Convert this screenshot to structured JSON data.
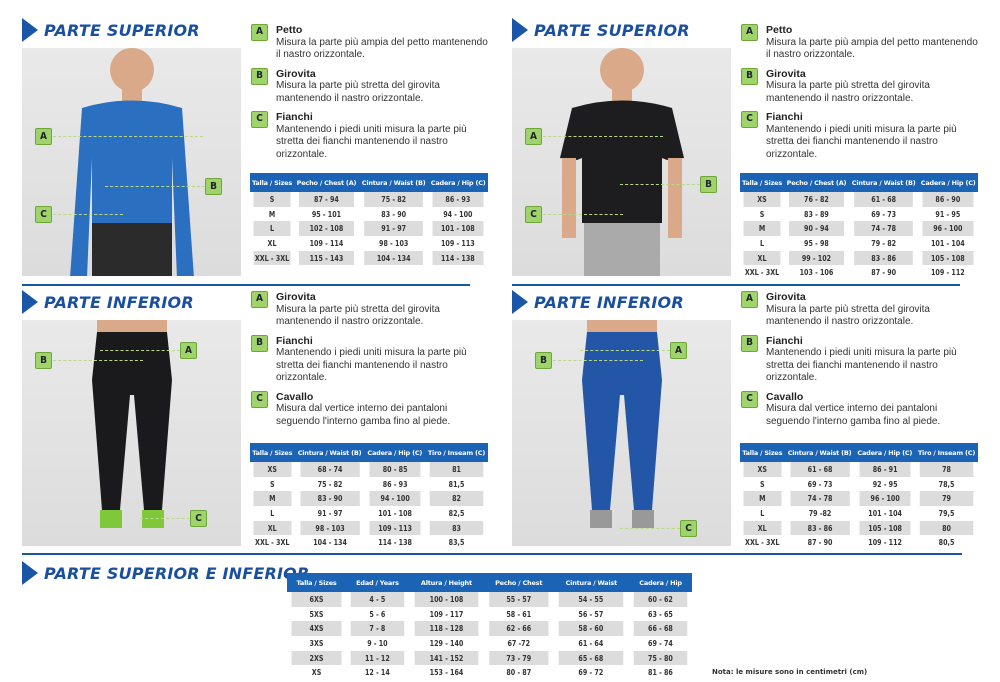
{
  "colors": {
    "accent": "#1a56a8",
    "header": "#1b64b5",
    "badge": "#9fd46a"
  },
  "sections": [
    {
      "id": "top-men",
      "title": "PARTE SUPERIOR",
      "garment": "long-sleeve-shirt",
      "garment_color": "#2a6fc0",
      "items": [
        {
          "badge": "A",
          "title": "Petto",
          "text": "Misura la parte più ampia del petto mantenendo il nastro orizzontale."
        },
        {
          "badge": "B",
          "title": "Girovita",
          "text": "Misura la parte più stretta del girovita mantenendo il nastro orizzontale."
        },
        {
          "badge": "C",
          "title": "Fianchi",
          "text": "Mantenendo i piedi uniti misura la parte più stretta dei fianchi mantenendo il nastro orizzontale."
        }
      ],
      "table": {
        "headers": [
          "Talla / Sizes",
          "Pecho / Chest (A)",
          "Cintura / Waist (B)",
          "Cadera / Hip (C)"
        ],
        "rows": [
          [
            "S",
            "87 - 94",
            "75 - 82",
            "86 - 93"
          ],
          [
            "M",
            "95 - 101",
            "83 - 90",
            "94 - 100"
          ],
          [
            "L",
            "102 - 108",
            "91 - 97",
            "101 - 108"
          ],
          [
            "XL",
            "109 - 114",
            "98 - 103",
            "109 - 113"
          ],
          [
            "XXL - 3XL",
            "115 - 143",
            "104 - 134",
            "114 - 138"
          ]
        ]
      }
    },
    {
      "id": "top-women",
      "title": "PARTE SUPERIOR",
      "garment": "t-shirt",
      "garment_color": "#1d1d1f",
      "items": [
        {
          "badge": "A",
          "title": "Petto",
          "text": "Misura la parte più ampia del petto mantenendo il nastro orizzontale."
        },
        {
          "badge": "B",
          "title": "Girovita",
          "text": "Misura la parte più stretta del girovita mantenendo il nastro orizzontale."
        },
        {
          "badge": "C",
          "title": "Fianchi",
          "text": "Mantenendo i piedi uniti misura la parte più stretta dei fianchi mantenendo il nastro orizzontale."
        }
      ],
      "table": {
        "headers": [
          "Talla / Sizes",
          "Pecho / Chest (A)",
          "Cintura / Waist (B)",
          "Cadera / Hip (C)"
        ],
        "rows": [
          [
            "XS",
            "76 - 82",
            "61 - 68",
            "86 - 90"
          ],
          [
            "S",
            "83 - 89",
            "69 - 73",
            "91 - 95"
          ],
          [
            "M",
            "90 - 94",
            "74 - 78",
            "96 - 100"
          ],
          [
            "L",
            "95 - 98",
            "79 - 82",
            "101 - 104"
          ],
          [
            "XL",
            "99 - 102",
            "83 - 86",
            "105 - 108"
          ],
          [
            "XXL - 3XL",
            "103 - 106",
            "87 - 90",
            "109 - 112"
          ]
        ]
      }
    },
    {
      "id": "bottom-men",
      "title": "PARTE INFERIOR",
      "garment": "tights",
      "garment_color": "#1a1a1c",
      "items": [
        {
          "badge": "A",
          "title": "Girovita",
          "text": "Misura la parte più stretta del girovita mantenendo il nastro orizzontale."
        },
        {
          "badge": "B",
          "title": "Fianchi",
          "text": "Mantenendo i piedi uniti misura la parte più stretta dei fianchi mantenendo il nastro orizzontale."
        },
        {
          "badge": "C",
          "title": "Cavallo",
          "text": "Misura dal vertice interno dei pantaloni seguendo l'interno gamba fino al piede."
        }
      ],
      "table": {
        "headers": [
          "Talla / Sizes",
          "Cintura / Waist (B)",
          "Cadera / Hip (C)",
          "Tiro / Inseam (C)"
        ],
        "rows": [
          [
            "XS",
            "68 - 74",
            "80 - 85",
            "81"
          ],
          [
            "S",
            "75 - 82",
            "86 - 93",
            "81,5"
          ],
          [
            "M",
            "83 - 90",
            "94 - 100",
            "82"
          ],
          [
            "L",
            "91 - 97",
            "101 - 108",
            "82,5"
          ],
          [
            "XL",
            "98 - 103",
            "109 - 113",
            "83"
          ],
          [
            "XXL - 3XL",
            "104 - 134",
            "114 - 138",
            "83,5"
          ]
        ]
      }
    },
    {
      "id": "bottom-women",
      "title": "PARTE INFERIOR",
      "garment": "leggings",
      "garment_color": "#2456a8",
      "items": [
        {
          "badge": "A",
          "title": "Girovita",
          "text": "Misura la parte più stretta del girovita mantenendo il nastro orizzontale."
        },
        {
          "badge": "B",
          "title": "Fianchi",
          "text": "Mantenendo i piedi uniti misura la parte più stretta dei fianchi mantenendo il nastro orizzontale."
        },
        {
          "badge": "C",
          "title": "Cavallo",
          "text": "Misura dal vertice interno dei pantaloni seguendo l'interno gamba fino al piede."
        }
      ],
      "table": {
        "headers": [
          "Talla / Sizes",
          "Cintura / Waist (B)",
          "Cadera / Hip (C)",
          "Tiro / Inseam (C)"
        ],
        "rows": [
          [
            "XS",
            "61 - 68",
            "86 - 91",
            "78"
          ],
          [
            "S",
            "69 - 73",
            "92 - 95",
            "78,5"
          ],
          [
            "M",
            "74 - 78",
            "96 - 100",
            "79"
          ],
          [
            "L",
            "79 -82",
            "101 - 104",
            "79,5"
          ],
          [
            "XL",
            "83 - 86",
            "105 - 108",
            "80"
          ],
          [
            "XXL - 3XL",
            "87 - 90",
            "109 - 112",
            "80,5"
          ]
        ]
      }
    }
  ],
  "kids": {
    "title": "PARTE SUPERIOR E INFERIOR",
    "table": {
      "headers": [
        "Talla / Sizes",
        "Edad / Years",
        "Altura / Height",
        "Pecho / Chest",
        "Cintura / Waist",
        "Cadera / Hip"
      ],
      "rows": [
        [
          "6XS",
          "4 - 5",
          "100 - 108",
          "55 - 57",
          "54 - 55",
          "60 - 62"
        ],
        [
          "5XS",
          "5 - 6",
          "109 - 117",
          "58 - 61",
          "56 - 57",
          "63 - 65"
        ],
        [
          "4XS",
          "7 - 8",
          "118 - 128",
          "62 - 66",
          "58 - 60",
          "66 - 68"
        ],
        [
          "3XS",
          "9 - 10",
          "129 - 140",
          "67 -72",
          "61 - 64",
          "69 - 74"
        ],
        [
          "2XS",
          "11 - 12",
          "141 - 152",
          "73 - 79",
          "65 - 68",
          "75 - 80"
        ],
        [
          "XS",
          "12 - 14",
          "153 - 164",
          "80 - 87",
          "69 - 72",
          "81 - 86"
        ]
      ]
    }
  },
  "note": "Nota: le misure sono in centimetri (cm)"
}
